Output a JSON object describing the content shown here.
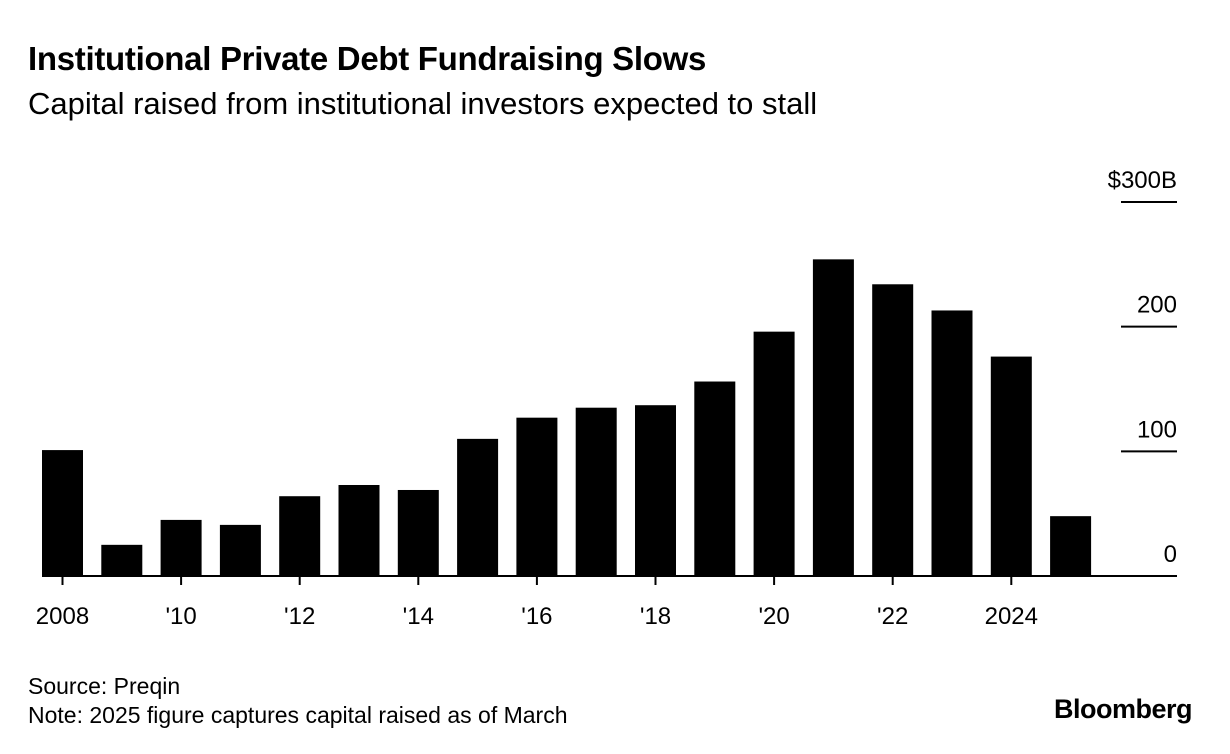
{
  "title": "Institutional Private Debt Fundraising Slows",
  "subtitle": "Capital raised from institutional investors expected to stall",
  "source": "Source: Preqin",
  "note": "Note: 2025 figure captures capital raised as of March",
  "brand": "Bloomberg",
  "chart_data": {
    "type": "bar",
    "categories": [
      "2008",
      "2009",
      "2010",
      "2011",
      "2012",
      "2013",
      "2014",
      "2015",
      "2016",
      "2017",
      "2018",
      "2019",
      "2020",
      "2021",
      "2022",
      "2023",
      "2024",
      "2025"
    ],
    "values": [
      101,
      25,
      45,
      41,
      64,
      73,
      69,
      110,
      127,
      135,
      137,
      156,
      196,
      254,
      234,
      213,
      176,
      48
    ],
    "x_tick_labels": [
      {
        "category": "2008",
        "label": "2008"
      },
      {
        "category": "2010",
        "label": "'10"
      },
      {
        "category": "2012",
        "label": "'12"
      },
      {
        "category": "2014",
        "label": "'14"
      },
      {
        "category": "2016",
        "label": "'16"
      },
      {
        "category": "2018",
        "label": "'18"
      },
      {
        "category": "2020",
        "label": "'20"
      },
      {
        "category": "2022",
        "label": "'22"
      },
      {
        "category": "2024",
        "label": "2024"
      }
    ],
    "y_ticks": [
      {
        "value": 0,
        "label": "0"
      },
      {
        "value": 100,
        "label": "100"
      },
      {
        "value": 200,
        "label": "200"
      },
      {
        "value": 300,
        "label": "$300B"
      }
    ],
    "ylim": [
      0,
      300
    ],
    "bar_color": "#000000",
    "grid": false,
    "y_axis_side": "right"
  }
}
